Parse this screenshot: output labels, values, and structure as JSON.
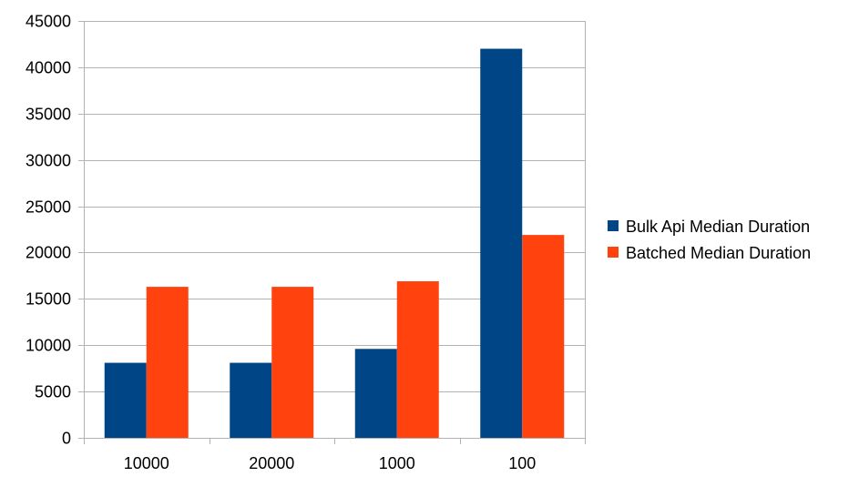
{
  "chart_data": {
    "type": "bar",
    "title": "",
    "xlabel": "",
    "ylabel": "",
    "categories": [
      "10000",
      "20000",
      "1000",
      "100"
    ],
    "series": [
      {
        "name": "Bulk Api Median Duration",
        "color": "#004586",
        "values": [
          8100,
          8100,
          9600,
          42000
        ]
      },
      {
        "name": "Batched Median Duration",
        "color": "#ff420e",
        "values": [
          16300,
          16300,
          16900,
          21900
        ]
      }
    ],
    "ylim": [
      0,
      45000
    ],
    "yticks": [
      0,
      5000,
      10000,
      15000,
      20000,
      25000,
      30000,
      35000,
      40000,
      45000
    ],
    "grid": true,
    "legend_position": "right"
  }
}
